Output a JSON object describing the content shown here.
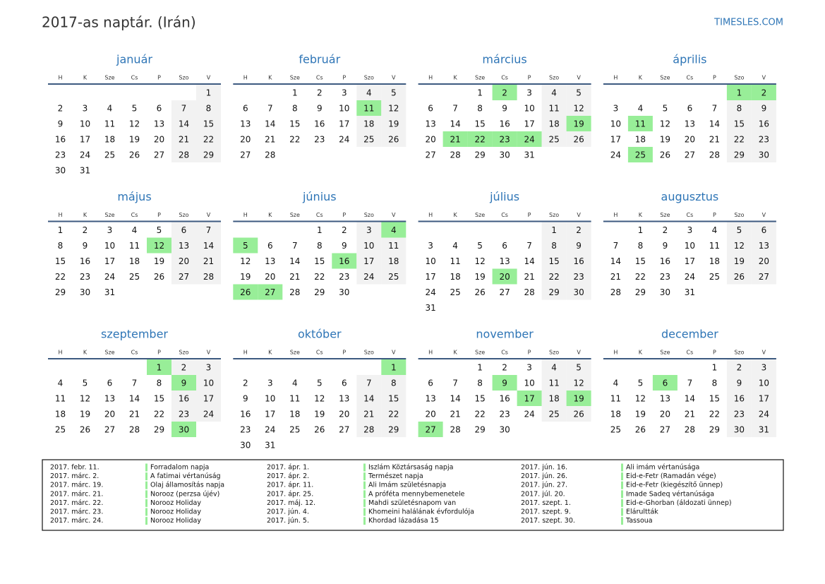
{
  "header": {
    "title": "2017-as naptár. (Irán)",
    "site": "TIMESLES.COM"
  },
  "weekdays": [
    "H",
    "K",
    "Sze",
    "Cs",
    "P",
    "Szo",
    "V"
  ],
  "months": [
    {
      "name": "január",
      "highlight": [],
      "weeks": [
        [
          null,
          null,
          null,
          null,
          null,
          null,
          1
        ],
        [
          2,
          3,
          4,
          5,
          6,
          7,
          8
        ],
        [
          9,
          10,
          11,
          12,
          13,
          14,
          15
        ],
        [
          16,
          17,
          18,
          19,
          20,
          21,
          22
        ],
        [
          23,
          24,
          25,
          26,
          27,
          28,
          29
        ],
        [
          30,
          31,
          null,
          null,
          null,
          null,
          null
        ]
      ]
    },
    {
      "name": "február",
      "highlight": [
        11
      ],
      "weeks": [
        [
          null,
          null,
          1,
          2,
          3,
          4,
          5
        ],
        [
          6,
          7,
          8,
          9,
          10,
          11,
          12
        ],
        [
          13,
          14,
          15,
          16,
          17,
          18,
          19
        ],
        [
          20,
          21,
          22,
          23,
          24,
          25,
          26
        ],
        [
          27,
          28,
          null,
          null,
          null,
          null,
          null
        ]
      ]
    },
    {
      "name": "március",
      "highlight": [
        2,
        19,
        21,
        22,
        23,
        24
      ],
      "weeks": [
        [
          null,
          null,
          1,
          2,
          3,
          4,
          5
        ],
        [
          6,
          7,
          8,
          9,
          10,
          11,
          12
        ],
        [
          13,
          14,
          15,
          16,
          17,
          18,
          19
        ],
        [
          20,
          21,
          22,
          23,
          24,
          25,
          26
        ],
        [
          27,
          28,
          29,
          30,
          31,
          null,
          null
        ]
      ]
    },
    {
      "name": "április",
      "highlight": [
        1,
        2,
        11,
        25
      ],
      "weeks": [
        [
          null,
          null,
          null,
          null,
          null,
          1,
          2
        ],
        [
          3,
          4,
          5,
          6,
          7,
          8,
          9
        ],
        [
          10,
          11,
          12,
          13,
          14,
          15,
          16
        ],
        [
          17,
          18,
          19,
          20,
          21,
          22,
          23
        ],
        [
          24,
          25,
          26,
          27,
          28,
          29,
          30
        ]
      ]
    },
    {
      "name": "május",
      "highlight": [
        12
      ],
      "weeks": [
        [
          1,
          2,
          3,
          4,
          5,
          6,
          7
        ],
        [
          8,
          9,
          10,
          11,
          12,
          13,
          14
        ],
        [
          15,
          16,
          17,
          18,
          19,
          20,
          21
        ],
        [
          22,
          23,
          24,
          25,
          26,
          27,
          28
        ],
        [
          29,
          30,
          31,
          null,
          null,
          null,
          null
        ]
      ]
    },
    {
      "name": "június",
      "highlight": [
        4,
        5,
        16,
        26,
        27
      ],
      "weeks": [
        [
          null,
          null,
          null,
          1,
          2,
          3,
          4
        ],
        [
          5,
          6,
          7,
          8,
          9,
          10,
          11
        ],
        [
          12,
          13,
          14,
          15,
          16,
          17,
          18
        ],
        [
          19,
          20,
          21,
          22,
          23,
          24,
          25
        ],
        [
          26,
          27,
          28,
          29,
          30,
          null,
          null
        ]
      ]
    },
    {
      "name": "július",
      "highlight": [
        20
      ],
      "weeks": [
        [
          null,
          null,
          null,
          null,
          null,
          1,
          2
        ],
        [
          3,
          4,
          5,
          6,
          7,
          8,
          9
        ],
        [
          10,
          11,
          12,
          13,
          14,
          15,
          16
        ],
        [
          17,
          18,
          19,
          20,
          21,
          22,
          23
        ],
        [
          24,
          25,
          26,
          27,
          28,
          29,
          30
        ],
        [
          31,
          null,
          null,
          null,
          null,
          null,
          null
        ]
      ]
    },
    {
      "name": "augusztus",
      "highlight": [],
      "weeks": [
        [
          null,
          1,
          2,
          3,
          4,
          5,
          6
        ],
        [
          7,
          8,
          9,
          10,
          11,
          12,
          13
        ],
        [
          14,
          15,
          16,
          17,
          18,
          19,
          20
        ],
        [
          21,
          22,
          23,
          24,
          25,
          26,
          27
        ],
        [
          28,
          29,
          30,
          31,
          null,
          null,
          null
        ]
      ]
    },
    {
      "name": "szeptember",
      "highlight": [
        1,
        9,
        30
      ],
      "weeks": [
        [
          null,
          null,
          null,
          null,
          1,
          2,
          3
        ],
        [
          4,
          5,
          6,
          7,
          8,
          9,
          10
        ],
        [
          11,
          12,
          13,
          14,
          15,
          16,
          17
        ],
        [
          18,
          19,
          20,
          21,
          22,
          23,
          24
        ],
        [
          25,
          26,
          27,
          28,
          29,
          30,
          null
        ]
      ]
    },
    {
      "name": "október",
      "highlight": [
        1
      ],
      "weeks": [
        [
          null,
          null,
          null,
          null,
          null,
          null,
          1
        ],
        [
          2,
          3,
          4,
          5,
          6,
          7,
          8
        ],
        [
          9,
          10,
          11,
          12,
          13,
          14,
          15
        ],
        [
          16,
          17,
          18,
          19,
          20,
          21,
          22
        ],
        [
          23,
          24,
          25,
          26,
          27,
          28,
          29
        ],
        [
          30,
          31,
          null,
          null,
          null,
          null,
          null
        ]
      ]
    },
    {
      "name": "november",
      "highlight": [
        9,
        17,
        19,
        27
      ],
      "weeks": [
        [
          null,
          null,
          1,
          2,
          3,
          4,
          5
        ],
        [
          6,
          7,
          8,
          9,
          10,
          11,
          12
        ],
        [
          13,
          14,
          15,
          16,
          17,
          18,
          19
        ],
        [
          20,
          21,
          22,
          23,
          24,
          25,
          26
        ],
        [
          27,
          28,
          29,
          30,
          null,
          null,
          null
        ]
      ]
    },
    {
      "name": "december",
      "highlight": [
        6
      ],
      "weeks": [
        [
          null,
          null,
          null,
          null,
          1,
          2,
          3
        ],
        [
          4,
          5,
          6,
          7,
          8,
          9,
          10
        ],
        [
          11,
          12,
          13,
          14,
          15,
          16,
          17
        ],
        [
          18,
          19,
          20,
          21,
          22,
          23,
          24
        ],
        [
          25,
          26,
          27,
          28,
          29,
          30,
          31
        ]
      ]
    }
  ],
  "holidays": [
    [
      "2017. febr. 11.",
      "Forradalom napja"
    ],
    [
      "2017. márc. 2.",
      "A fatimai vértanúság"
    ],
    [
      "2017. márc. 19.",
      "Olaj államosítás napja"
    ],
    [
      "2017. márc. 21.",
      "Norooz (perzsa újév)"
    ],
    [
      "2017. márc. 22.",
      "Norooz Holiday"
    ],
    [
      "2017. márc. 23.",
      "Norooz Holiday"
    ],
    [
      "2017. márc. 24.",
      "Norooz Holiday"
    ],
    [
      "2017. ápr. 1.",
      "Iszlám Köztársaság napja"
    ],
    [
      "2017. ápr. 2.",
      "Természet napja"
    ],
    [
      "2017. ápr. 11.",
      "Ali Imám születésnapja"
    ],
    [
      "2017. ápr. 25.",
      "A próféta mennybemenetele"
    ],
    [
      "2017. máj. 12.",
      "Mahdi születésnapom van"
    ],
    [
      "2017. jún. 4.",
      "Khomeini halálának évfordulója"
    ],
    [
      "2017. jún. 5.",
      "Khordad lázadása 15"
    ],
    [
      "2017. jún. 16.",
      "Ali imám vértanúsága"
    ],
    [
      "2017. jún. 26.",
      "Eid-e-Fetr (Ramadán vége)"
    ],
    [
      "2017. jún. 27.",
      "Eid-e-Fetr (kiegészítő ünnep)"
    ],
    [
      "2017. júl. 20.",
      "Imade Sadeq vértanúsága"
    ],
    [
      "2017. szept. 1.",
      "Eid-e-Ghorban (áldozati ünnep)"
    ],
    [
      "2017. szept. 9.",
      "Elárultták"
    ],
    [
      "2017. szept. 30.",
      "Tassoua"
    ]
  ]
}
